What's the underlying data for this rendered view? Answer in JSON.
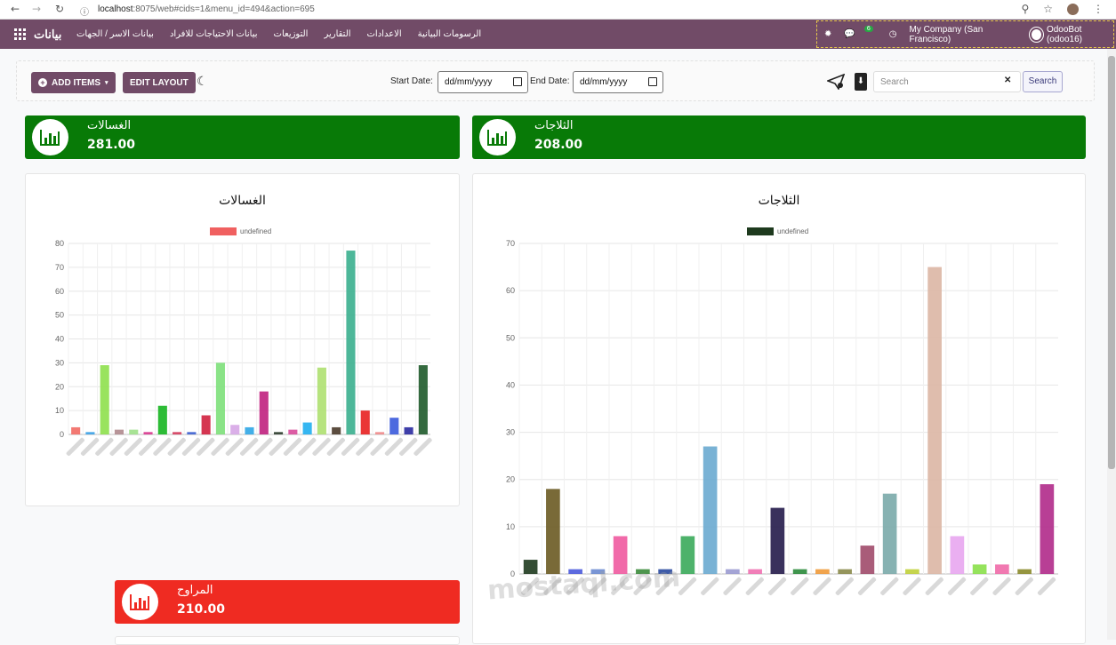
{
  "browser": {
    "url_host": "localhost",
    "url_rest": ":8075/web#cids=1&menu_id=494&action=695"
  },
  "navbar": {
    "brand": "بيانات",
    "menu_items": [
      "بيانات الاسر / الجهات",
      "بيانات الاحتياجات للافراد",
      "التوزيعات",
      "التقارير",
      "الاعدادات",
      "الرسومات البيانية"
    ],
    "message_count": "6",
    "company": "My Company (San Francisco)",
    "user": "OdooBot (odoo16)"
  },
  "controls": {
    "add_items": "ADD ITEMS",
    "edit_layout": "EDIT LAYOUT",
    "start_date_label": "Start Date:",
    "end_date_label": "End Date:",
    "date_placeholder": "dd/mm/yyyy",
    "search_placeholder": "Search",
    "search_button": "Search"
  },
  "kpis": [
    {
      "title": "الغسالات",
      "value": "281.00",
      "color": "#087a07"
    },
    {
      "title": "الثلاجات",
      "value": "208.00",
      "color": "#087a07"
    },
    {
      "title": "المراوح",
      "value": "210.00",
      "color": "#ef2b22"
    }
  ],
  "watermark": "mostaql.com",
  "chart_data": [
    {
      "type": "bar",
      "title": "الغسالات",
      "legend": "undefined",
      "legend_color": "#f06060",
      "ylim": [
        0,
        80
      ],
      "yticks": [
        0,
        10,
        20,
        30,
        40,
        50,
        60,
        70,
        80
      ],
      "grid": true,
      "values": [
        3,
        1,
        29,
        2,
        2,
        1,
        12,
        1,
        1,
        8,
        30,
        4,
        3,
        18,
        1,
        2,
        5,
        28,
        3,
        77,
        10,
        1,
        7,
        3,
        29
      ],
      "colors": [
        "#f26a64",
        "#3aa0e6",
        "#8ee04c",
        "#b08a8e",
        "#9ee08a",
        "#d8368e",
        "#16b520",
        "#d43b5c",
        "#3b5fd0",
        "#d0203e",
        "#7de07a",
        "#d6a6e6",
        "#2fa6e6",
        "#c0207e",
        "#2a3a2a",
        "#d84a9a",
        "#1faef0",
        "#aee070",
        "#4a3a2a",
        "#3aaf8e",
        "#e82020",
        "#f08a8a",
        "#3a5adc",
        "#2a2aa0",
        "#1e5a2a"
      ]
    },
    {
      "type": "bar",
      "title": "الثلاجات",
      "legend": "undefined",
      "legend_color": "#1e3a1e",
      "ylim": [
        0,
        70
      ],
      "yticks": [
        0,
        10,
        20,
        30,
        40,
        50,
        60,
        70
      ],
      "grid": true,
      "values": [
        3,
        18,
        1,
        1,
        8,
        1,
        1,
        8,
        27,
        1,
        1,
        14,
        1,
        1,
        1,
        6,
        17,
        1,
        65,
        8,
        2,
        2,
        1,
        19
      ],
      "colors": [
        "#1e3a1e",
        "#6a5a22",
        "#4a5adc",
        "#6a8ad0",
        "#f05aa0",
        "#3a8a3a",
        "#2a4aa0",
        "#3aaa5a",
        "#6aaad0",
        "#9a9ad0",
        "#f070b0",
        "#241a4a",
        "#2a8a3a",
        "#f09a3a",
        "#8a8a4a",
        "#a04a6a",
        "#7aaaaa",
        "#c0d03a",
        "#dcb6a4",
        "#e8a6f0",
        "#8ae04a",
        "#f06aa8",
        "#8a8a2a",
        "#b02a8a"
      ]
    }
  ]
}
